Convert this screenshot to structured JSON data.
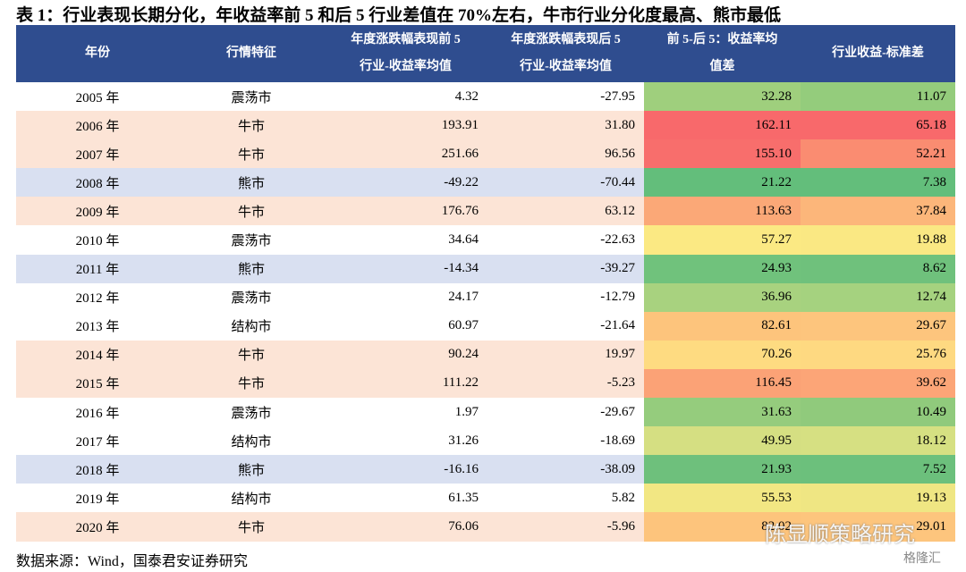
{
  "title": "表 1：行业表现长期分化，年收益率前 5 和后 5 行业差值在 70%左右，牛市行业分化度最高、熊市最低",
  "table": {
    "header": [
      [
        "年份"
      ],
      [
        "行情特征"
      ],
      [
        "年度涨跌幅表现前 5",
        "行业-收益率均值"
      ],
      [
        "年度涨跌幅表现后 5",
        "行业-收益率均值"
      ],
      [
        "前 5-后 5：收益率均",
        "值差"
      ],
      [
        "行业收益-标准差"
      ]
    ],
    "header_color": "#2f4d8f",
    "market_colors": {
      "牛市": "#fce4d6",
      "熊市": "#d9e0f1"
    },
    "rows": [
      [
        "2005 年",
        "震荡市",
        "4.32",
        "-27.95",
        "32.28",
        "11.07"
      ],
      [
        "2006 年",
        "牛市",
        "193.91",
        "31.80",
        "162.11",
        "65.18"
      ],
      [
        "2007 年",
        "牛市",
        "251.66",
        "96.56",
        "155.10",
        "52.21"
      ],
      [
        "2008 年",
        "熊市",
        "-49.22",
        "-70.44",
        "21.22",
        "7.38"
      ],
      [
        "2009 年",
        "牛市",
        "176.76",
        "63.12",
        "113.63",
        "37.84"
      ],
      [
        "2010 年",
        "震荡市",
        "34.64",
        "-22.63",
        "57.27",
        "19.88"
      ],
      [
        "2011 年",
        "熊市",
        "-14.34",
        "-39.27",
        "24.93",
        "8.62"
      ],
      [
        "2012 年",
        "震荡市",
        "24.17",
        "-12.79",
        "36.96",
        "12.74"
      ],
      [
        "2013 年",
        "结构市",
        "60.97",
        "-21.64",
        "82.61",
        "29.67"
      ],
      [
        "2014 年",
        "牛市",
        "90.24",
        "19.97",
        "70.26",
        "25.76"
      ],
      [
        "2015 年",
        "牛市",
        "111.22",
        "-5.23",
        "116.45",
        "39.62"
      ],
      [
        "2016 年",
        "震荡市",
        "1.97",
        "-29.67",
        "31.63",
        "10.49"
      ],
      [
        "2017 年",
        "结构市",
        "31.26",
        "-18.69",
        "49.95",
        "18.12"
      ],
      [
        "2018 年",
        "熊市",
        "-16.16",
        "-38.09",
        "21.93",
        "7.52"
      ],
      [
        "2019 年",
        "结构市",
        "61.35",
        "5.82",
        "55.53",
        "19.13"
      ],
      [
        "2020 年",
        "牛市",
        "76.06",
        "-5.96",
        "82.02",
        "29.01"
      ]
    ],
    "heat_colors": [
      [
        "#9fcf7d",
        "#94cc7c"
      ],
      [
        "#f8696b",
        "#f8696b"
      ],
      [
        "#f86e6c",
        "#fa8c71"
      ],
      [
        "#63be7b",
        "#63be7b"
      ],
      [
        "#fba877",
        "#fcb67a"
      ],
      [
        "#fbe983",
        "#fae883"
      ],
      [
        "#70c27c",
        "#6fc17c"
      ],
      [
        "#a8d27f",
        "#a5d27f"
      ],
      [
        "#fdc47c",
        "#fdc57d"
      ],
      [
        "#fedb81",
        "#fed981"
      ],
      [
        "#fba276",
        "#fca577"
      ],
      [
        "#95cc7d",
        "#90ca7c"
      ],
      [
        "#d5df82",
        "#d6e082"
      ],
      [
        "#6ec07c",
        "#6cc07c"
      ],
      [
        "#f2e783",
        "#efe683"
      ],
      [
        "#fdc47c",
        "#fdc57d"
      ]
    ]
  },
  "source": "数据来源：Wind，国泰君安证券研究",
  "watermark": "陈显顺策略研究",
  "logo": "格隆汇"
}
